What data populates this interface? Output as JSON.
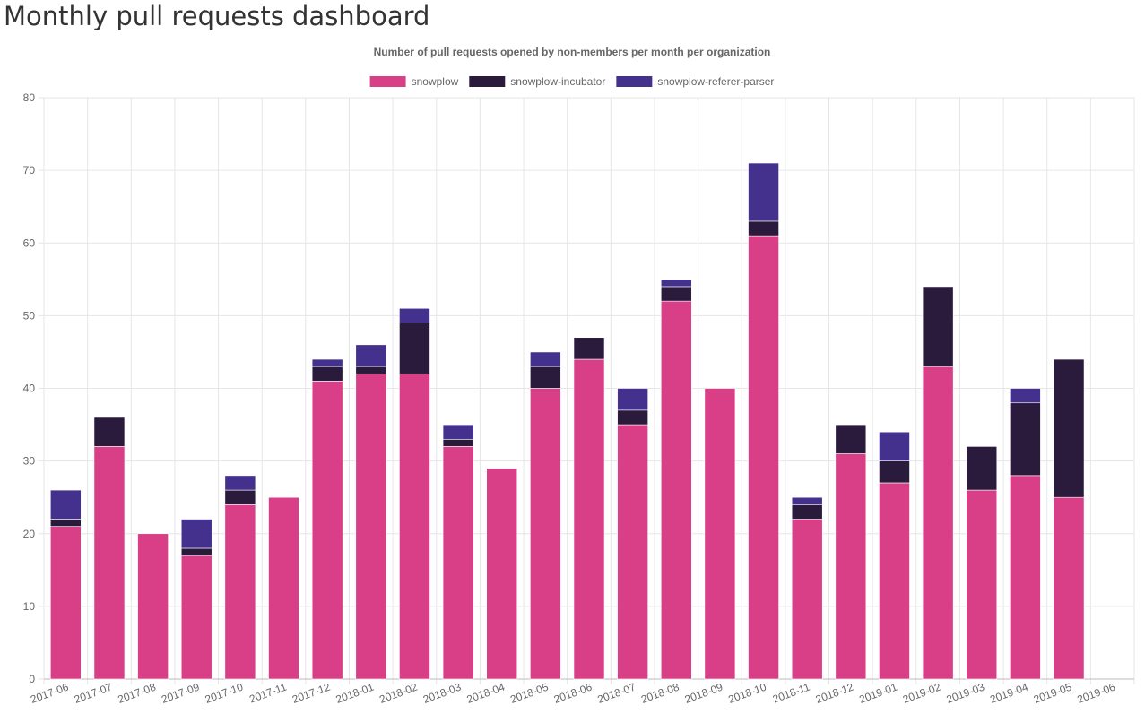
{
  "page": {
    "title": "Monthly pull requests dashboard"
  },
  "colors": {
    "snowplow": "#d83f87",
    "snowplow-incubator": "#2a1b3d",
    "snowplow-referer-parser": "#44318d",
    "grid": "#e6e6e6",
    "axis_text": "#666666"
  },
  "chart_data": {
    "type": "bar",
    "stacked": true,
    "title": "Number of pull requests opened by non-members per month per organization",
    "legend_position": "top-center",
    "grid": true,
    "ylim": [
      0,
      80
    ],
    "yticks": [
      0,
      10,
      20,
      30,
      40,
      50,
      60,
      70,
      80
    ],
    "categories": [
      "2017-06",
      "2017-07",
      "2017-08",
      "2017-09",
      "2017-10",
      "2017-11",
      "2017-12",
      "2018-01",
      "2018-02",
      "2018-03",
      "2018-04",
      "2018-05",
      "2018-06",
      "2018-07",
      "2018-08",
      "2018-09",
      "2018-10",
      "2018-11",
      "2018-12",
      "2019-01",
      "2019-02",
      "2019-03",
      "2019-04",
      "2019-05",
      "2019-06"
    ],
    "series": [
      {
        "name": "snowplow",
        "color": "#d83f87",
        "values": [
          21,
          32,
          20,
          17,
          24,
          25,
          41,
          42,
          42,
          32,
          29,
          40,
          44,
          35,
          52,
          40,
          61,
          22,
          31,
          27,
          43,
          26,
          28,
          25,
          0
        ]
      },
      {
        "name": "snowplow-incubator",
        "color": "#2a1b3d",
        "values": [
          1,
          4,
          0,
          1,
          2,
          0,
          2,
          1,
          7,
          1,
          0,
          3,
          3,
          2,
          2,
          0,
          2,
          2,
          4,
          3,
          11,
          6,
          10,
          19,
          0
        ]
      },
      {
        "name": "snowplow-referer-parser",
        "color": "#44318d",
        "values": [
          4,
          0,
          0,
          4,
          2,
          0,
          1,
          3,
          2,
          2,
          0,
          2,
          0,
          3,
          1,
          0,
          8,
          1,
          0,
          4,
          0,
          0,
          2,
          0,
          0
        ]
      }
    ]
  }
}
